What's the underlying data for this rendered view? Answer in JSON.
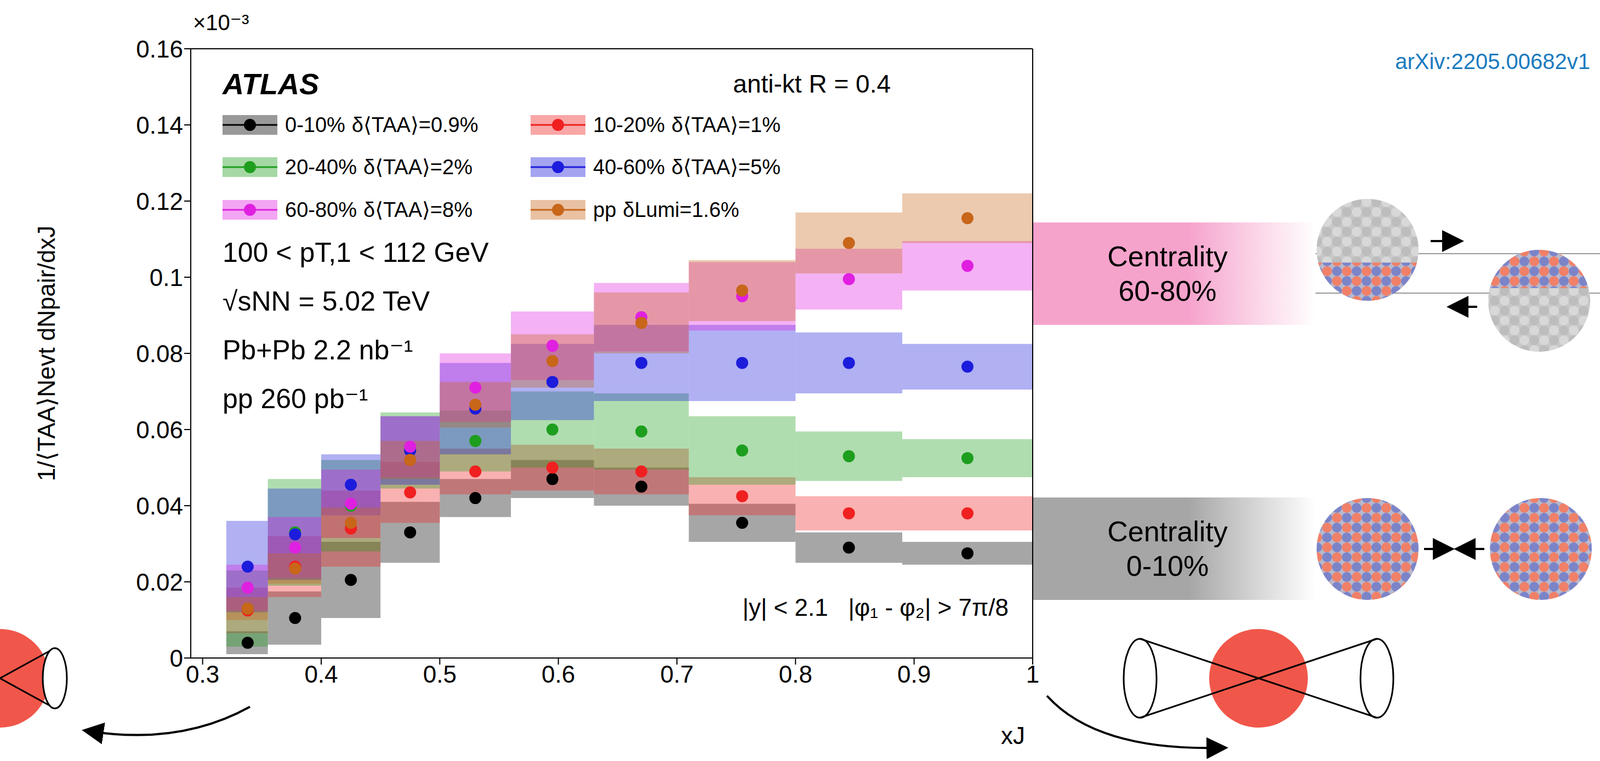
{
  "chart_data": {
    "type": "scatter",
    "title": "ATLAS",
    "subtitle": "anti-kt R = 0.4",
    "annotations": [
      "100 < pT,1 < 112 GeV",
      "√sNN = 5.02 TeV",
      "Pb+Pb 2.2 nb⁻¹",
      "pp 260 pb⁻¹"
    ],
    "selection": "|y| < 2.1   |φ₁ - φ₂| > 7π/8",
    "source": "arXiv:2205.00682v1",
    "y_multiplier": "×10⁻³",
    "x_label": "xJ",
    "y_label": "1/⟨TAA⟩Nevt  dNpair/dxJ",
    "centrality_boxes": [
      {
        "text": [
          "Centrality",
          "60-80%"
        ],
        "color": "#f6a3cc"
      },
      {
        "text": [
          "Centrality",
          "0-10%"
        ],
        "color": "#a6a6a6"
      }
    ],
    "x": [
      0.338,
      0.378,
      0.425,
      0.475,
      0.53,
      0.595,
      0.67,
      0.755,
      0.845,
      0.945
    ],
    "bins": [
      0.32,
      0.355,
      0.4,
      0.45,
      0.5,
      0.56,
      0.63,
      0.71,
      0.8,
      0.89,
      1
    ],
    "xlim": [
      0.29,
      1
    ],
    "xticks": [
      0.3,
      0.4,
      0.5,
      0.6,
      0.7,
      0.8,
      0.9,
      1
    ],
    "ylim": [
      0,
      0.16
    ],
    "yticks": [
      0,
      0.02,
      0.04,
      0.06,
      0.08,
      0.1,
      0.12,
      0.14,
      0.16
    ],
    "legend": "upper left",
    "marker": "circle",
    "series": [
      {
        "name": "0-10%",
        "norm_label": "δ⟨TAA⟩=0.9%",
        "color": "#000000",
        "values": [
          0.004,
          0.0105,
          0.0205,
          0.033,
          0.042,
          0.047,
          0.045,
          0.0355,
          0.029,
          0.0275
        ],
        "sys": [
          0.003,
          0.007,
          0.01,
          0.008,
          0.005,
          0.005,
          0.005,
          0.005,
          0.004,
          0.003
        ]
      },
      {
        "name": "10-20%",
        "norm_label": "δ⟨TAA⟩=1%",
        "color": "#f02020",
        "values": [
          0.0125,
          0.024,
          0.034,
          0.0435,
          0.049,
          0.05,
          0.049,
          0.0425,
          0.038,
          0.038
        ],
        "sys": [
          0.006,
          0.008,
          0.01,
          0.008,
          0.006,
          0.006,
          0.006,
          0.005,
          0.0045,
          0.0045
        ]
      },
      {
        "name": "20-40%",
        "norm_label": "δ⟨TAA⟩=2%",
        "color": "#1e9e1e",
        "values": [
          0.013,
          0.033,
          0.04,
          0.0545,
          0.057,
          0.06,
          0.0595,
          0.0545,
          0.053,
          0.0525
        ],
        "sys": [
          0.01,
          0.014,
          0.012,
          0.01,
          0.008,
          0.01,
          0.01,
          0.009,
          0.0065,
          0.005
        ]
      },
      {
        "name": "40-60%",
        "norm_label": "δ⟨TAA⟩=5%",
        "color": "#1c1cdc",
        "values": [
          0.024,
          0.0325,
          0.0455,
          0.0545,
          0.0655,
          0.0725,
          0.0775,
          0.0775,
          0.0775,
          0.0765
        ],
        "sys": [
          0.012,
          0.012,
          0.008,
          0.009,
          0.012,
          0.01,
          0.01,
          0.01,
          0.008,
          0.006
        ]
      },
      {
        "name": "60-80%",
        "norm_label": "δ⟨TAA⟩=8%",
        "color": "#e020e0",
        "values": [
          0.0185,
          0.029,
          0.0405,
          0.0555,
          0.071,
          0.082,
          0.0895,
          0.095,
          0.0995,
          0.103
        ],
        "sys": [
          0.006,
          0.008,
          0.009,
          0.008,
          0.009,
          0.009,
          0.009,
          0.009,
          0.008,
          0.0065
        ]
      },
      {
        "name": "pp",
        "norm_label": "δLumi=1.6%",
        "color": "#c8661a",
        "values": [
          0.013,
          0.0235,
          0.0355,
          0.052,
          0.0665,
          0.078,
          0.088,
          0.0965,
          0.109,
          0.1155
        ],
        "sys": [
          0.003,
          0.004,
          0.004,
          0.005,
          0.006,
          0.007,
          0.008,
          0.008,
          0.008,
          0.0065
        ]
      }
    ]
  }
}
